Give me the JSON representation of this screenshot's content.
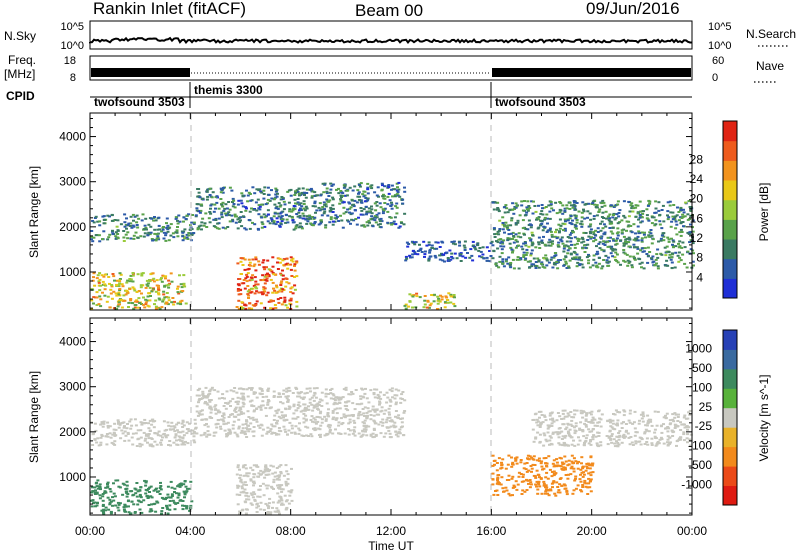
{
  "header": {
    "station": "Rankin Inlet (fitACF)",
    "beam": "Beam 00",
    "date": "09/Jun/2016"
  },
  "strip": {
    "nsky_label": "N.Sky",
    "nsky_ticks": [
      "10^5",
      "10^0"
    ],
    "nsearch_label": "N.Search",
    "nsearch_ticks": [
      "10^5",
      "10^0"
    ],
    "freq_label": "Freq.",
    "freq_unit": "[MHz]",
    "freq_ticks": [
      "18",
      "8"
    ],
    "nave_label": "Nave",
    "nave_ticks": [
      "60",
      "0"
    ],
    "cpid_label": "CPID",
    "cpid_segments": [
      {
        "label": "twofsound 3503",
        "start": "00:00",
        "end": "04:00"
      },
      {
        "label": "themis 3300",
        "start": "04:00",
        "end": "16:00"
      },
      {
        "label": "twofsound 3503",
        "start": "16:00",
        "end": "24:00"
      }
    ]
  },
  "axes": {
    "time_ticks": [
      "00:00",
      "04:00",
      "08:00",
      "12:00",
      "16:00",
      "20:00",
      "00:00"
    ],
    "xlabel": "Time UT",
    "ylabel": "Slant Range [km]",
    "y_ticks": [
      "1000",
      "2000",
      "3000",
      "4000"
    ]
  },
  "colorbars": {
    "power": {
      "label": "Power [dB]",
      "ticks": [
        "4",
        "8",
        "12",
        "16",
        "20",
        "24",
        "28"
      ],
      "colors": [
        "#1f2fd6",
        "#2c5aa8",
        "#3a7a62",
        "#59a24a",
        "#9acb3a",
        "#e9c817",
        "#f2931d",
        "#ee5b1d",
        "#e02414"
      ]
    },
    "velocity": {
      "label": "Velocity [m s^-1]",
      "ticks": [
        "1000",
        "500",
        "100",
        "25",
        "-25",
        "-100",
        "-500",
        "-1000"
      ],
      "colors": [
        "#2741b6",
        "#3a6aa0",
        "#3d8a5e",
        "#58b23b",
        "#c8c8c0",
        "#e9b22a",
        "#f28a1c",
        "#eb4a18",
        "#df1b12"
      ]
    }
  },
  "chart_data": [
    {
      "type": "heatmap",
      "title": "Power",
      "xlabel": "Time UT",
      "ylabel": "Slant Range [km]",
      "xlim": [
        0,
        24
      ],
      "ylim": [
        180,
        4500
      ],
      "regions": [
        {
          "t": [
            0.0,
            4.2
          ],
          "r": [
            1700,
            2300
          ],
          "level": 9
        },
        {
          "t": [
            4.2,
            9.0
          ],
          "r": [
            1950,
            2900
          ],
          "level": 8
        },
        {
          "t": [
            9.0,
            12.5
          ],
          "r": [
            2000,
            3000
          ],
          "level": 8
        },
        {
          "t": [
            12.5,
            16.0
          ],
          "r": [
            1250,
            1700
          ],
          "level": 5
        },
        {
          "t": [
            16.0,
            24.0
          ],
          "r": [
            1100,
            2600
          ],
          "level": 9
        },
        {
          "t": [
            0.0,
            3.8
          ],
          "r": [
            200,
            1000
          ],
          "level": 18
        },
        {
          "t": [
            5.8,
            8.2
          ],
          "r": [
            200,
            1350
          ],
          "level": 26
        },
        {
          "t": [
            12.5,
            14.5
          ],
          "r": [
            200,
            550
          ],
          "level": 18
        }
      ]
    },
    {
      "type": "heatmap",
      "title": "Velocity",
      "xlabel": "Time UT",
      "ylabel": "Slant Range [km]",
      "xlim": [
        0,
        24
      ],
      "ylim": [
        180,
        4500
      ],
      "regions": [
        {
          "t": [
            0.0,
            4.2
          ],
          "r": [
            1700,
            2300
          ],
          "level": 0
        },
        {
          "t": [
            4.2,
            12.5
          ],
          "r": [
            1900,
            3000
          ],
          "level": 0
        },
        {
          "t": [
            0.0,
            4.0
          ],
          "r": [
            200,
            950
          ],
          "level": 150
        },
        {
          "t": [
            5.8,
            8.0
          ],
          "r": [
            200,
            1300
          ],
          "level": 0
        },
        {
          "t": [
            16.0,
            20.0
          ],
          "r": [
            600,
            1500
          ],
          "level": -300
        },
        {
          "t": [
            17.5,
            24.0
          ],
          "r": [
            1700,
            2500
          ],
          "level": 0
        }
      ]
    }
  ]
}
